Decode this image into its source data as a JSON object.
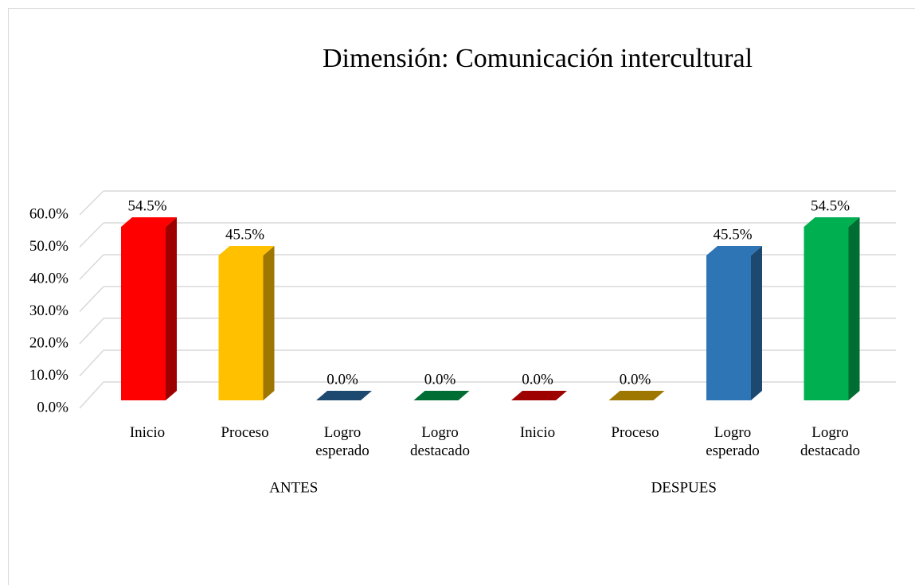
{
  "chart_data": {
    "type": "bar3d",
    "title": "Dimensión: Comunicación intercultural",
    "groups": [
      "ANTES",
      "DESPUES"
    ],
    "categories": [
      "Inicio",
      "Proceso",
      "Logro esperado",
      "Logro destacado",
      "Inicio",
      "Proceso",
      "Logro esperado",
      "Logro destacado"
    ],
    "values": [
      54.5,
      45.5,
      0.0,
      0.0,
      0.0,
      0.0,
      45.5,
      54.5
    ],
    "value_labels": [
      "54.5%",
      "45.5%",
      "0.0%",
      "0.0%",
      "0.0%",
      "0.0%",
      "45.5%",
      "54.5%"
    ],
    "colors": [
      "#ff0000",
      "#ffc000",
      "#2e75b6",
      "#00b050",
      "#ff0000",
      "#ffc000",
      "#2e75b6",
      "#00b050"
    ],
    "ylim": [
      0,
      60
    ],
    "yticks": [
      {
        "value": 0,
        "label": "0.0%"
      },
      {
        "value": 10,
        "label": "10.0%"
      },
      {
        "value": 20,
        "label": "20.0%"
      },
      {
        "value": 30,
        "label": "30.0%"
      },
      {
        "value": 40,
        "label": "40.0%"
      },
      {
        "value": 50,
        "label": "50.0%"
      },
      {
        "value": 60,
        "label": "60.0%"
      }
    ],
    "grid": true
  }
}
